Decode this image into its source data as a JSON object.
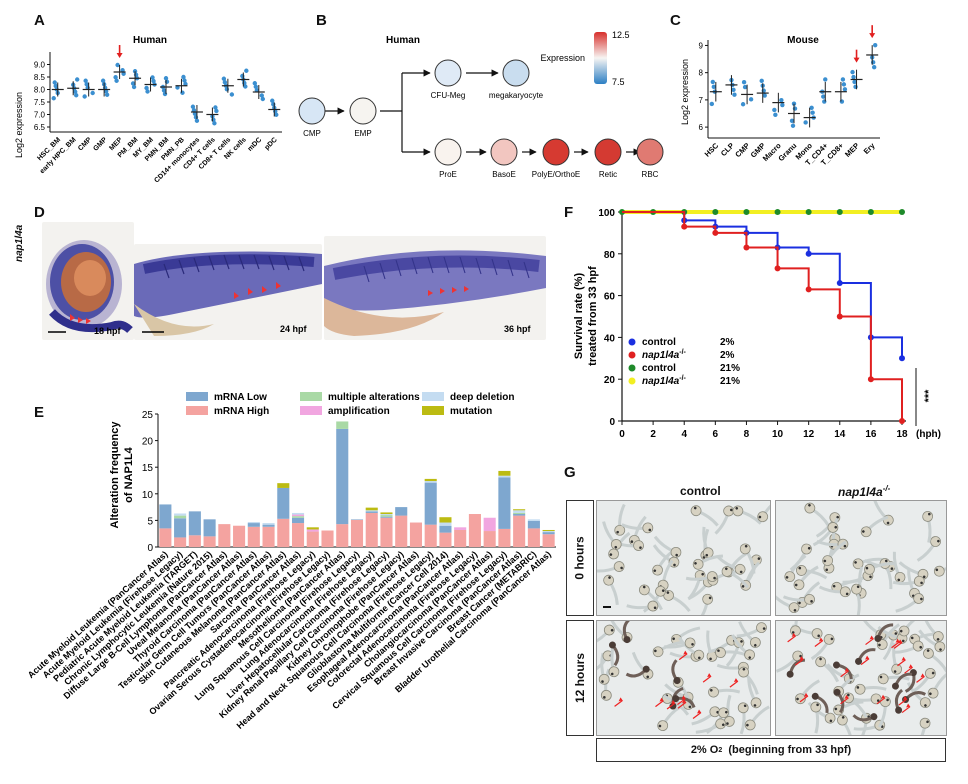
{
  "panels": {
    "A": "A",
    "B": "B",
    "C": "C",
    "D": "D",
    "E": "E",
    "F": "F",
    "G": "G"
  },
  "panelA": {
    "title": "Human",
    "ylabel": "Log2 expression",
    "chart_data": {
      "type": "scatter",
      "title": "Human",
      "ylabel": "Log2 expression",
      "ylim": [
        6.3,
        9.5
      ],
      "yticks": [
        "6.5",
        "7.0",
        "7.5",
        "8.0",
        "8.5",
        "9.0"
      ],
      "categories": [
        "HSC_BM",
        "early HPC_BM",
        "CMP",
        "GMP",
        "MEP",
        "PM_BM",
        "MY_BM",
        "PMN_BM",
        "PMN_PB",
        "CD14+ monocytes",
        "CD4+ T cells",
        "CD8+ T cells",
        "NK cells",
        "mDC",
        "pDC"
      ],
      "means": [
        8.0,
        8.05,
        8.0,
        8.0,
        8.7,
        8.45,
        8.2,
        8.1,
        8.15,
        7.1,
        7.0,
        8.15,
        8.4,
        7.9,
        7.2
      ],
      "highlight": "MEP"
    }
  },
  "panelB": {
    "title": "Human",
    "legend_title": "Expression",
    "legend_max": "12.5",
    "legend_min": "7.5",
    "nodes": [
      {
        "id": "CMP",
        "label": "CMP",
        "color": "#d7e6f5"
      },
      {
        "id": "EMP",
        "label": "EMP",
        "color": "#f6f4f0"
      },
      {
        "id": "CFU",
        "label": "CFU-Meg",
        "color": "#dfeaf6"
      },
      {
        "id": "MK",
        "label": "megakaryocyte",
        "color": "#c9ddef"
      },
      {
        "id": "ProE",
        "label": "ProE",
        "color": "#f9f3ee"
      },
      {
        "id": "BasoE",
        "label": "BasoE",
        "color": "#f2c6c0"
      },
      {
        "id": "Poly",
        "label": "PolyE/OrthoE",
        "color": "#d63a31"
      },
      {
        "id": "Retic",
        "label": "Retic",
        "color": "#d43a32"
      },
      {
        "id": "RBC",
        "label": "RBC",
        "color": "#e07a72"
      }
    ]
  },
  "panelC": {
    "title": "Mouse",
    "ylabel": "Log2 expression",
    "chart_data": {
      "type": "scatter",
      "title": "Mouse",
      "ylabel": "Log2 expression",
      "ylim": [
        5.6,
        9.2
      ],
      "yticks": [
        "6",
        "7",
        "8",
        "9"
      ],
      "categories": [
        "HSC",
        "CLP",
        "CMP",
        "GMP",
        "Macro",
        "Granu",
        "Mono",
        "T_CD4+",
        "T_CD8+",
        "MEP",
        "Ery"
      ],
      "means": [
        7.3,
        7.55,
        7.2,
        7.25,
        6.9,
        6.5,
        6.35,
        7.3,
        7.3,
        7.75,
        8.65
      ],
      "highlight": [
        "MEP",
        "Ery"
      ]
    }
  },
  "panelD": {
    "gene": "nap1l4a",
    "stages": [
      "18 hpf",
      "24 hpf",
      "36 hpf"
    ]
  },
  "panelE": {
    "ylabel_line1": "Alteration frequency",
    "ylabel_line2": "of NAP1L4",
    "legend": [
      {
        "label": "mRNA Low",
        "color": "#7ea7cf"
      },
      {
        "label": "mRNA High",
        "color": "#f4a3a0"
      },
      {
        "label": "multiple alterations",
        "color": "#a9d9a5"
      },
      {
        "label": "amplification",
        "color": "#f1a6e0"
      },
      {
        "label": "deep deletion",
        "color": "#c4dcf1"
      },
      {
        "label": "mutation",
        "color": "#bcbb12"
      }
    ],
    "chart_data": {
      "type": "bar",
      "stacked": true,
      "ylim": [
        0,
        25
      ],
      "yticks": [
        "0",
        "5",
        "10",
        "15",
        "20",
        "25"
      ],
      "categories": [
        "Acute Myeloid Leukemia (PanCancer Atlas)",
        "Acute Myeloid Leukemia (Firehose Legacy)",
        "Pediatric Acute Myeloid Leukemia (TARGET)",
        "Chronic Lymphocytic Leukemia (Nature 2015)",
        "Diffuse Large B-Cell Lymphoma (PanCancer Atlas)",
        "Uveal Melanoma (PanCancer Atlas)",
        "Thyroid Carcinoma (PanCancer Atlas)",
        "Testicular Germ Cell Tumors (PanCancer Atlas)",
        "Skin Cutaneous Melanoma (PanCancer Atlas)",
        "Sarcoma (PanCancer Atlas)",
        "Pancreatic Adenocarcinoma (Firehose Legacy)",
        "Ovarian Serous Cystadenocarcinoma (Firehose Legacy)",
        "Mesothelioma (PanCancer Atlas)",
        "Lung Squamous Cell Carcinoma (Firehose Legacy)",
        "Lung Adenocarcinoma (Firehose Legacy)",
        "Liver Hepatocellular Carcinoma (Firehose Legacy)",
        "Kidney Renal Papillary Cell Carcinoma (Firehose Legacy)",
        "Kidney Chromophobe (PanCancer Atlas)",
        "Head and Neck Squamous Cell Carcinoma (Firehose Legacy)",
        "Glioblastoma Multiforme (Cancer Cell 2014)",
        "Esophageal Adenocarcinoma (PanCancer Atlas)",
        "Colorectal Adenocarcinoma (Firehose Legacy)",
        "Cholangiocarcinoma (PanCancer Atlas)",
        "Cervical Squamous Cell Carcinoma (Firehose Legacy)",
        "Breast Invasive Carcinoma (PanCancer Atlas)",
        "Breast Cancer (METABRIC)",
        "Bladder Urothelial Carcinoma (PanCancer Atlas)"
      ],
      "series": [
        {
          "name": "mRNA High",
          "values": [
            3.5,
            1.8,
            2.2,
            2.0,
            4.3,
            4.0,
            3.8,
            3.8,
            5.3,
            4.5,
            2.9,
            3.1,
            4.3,
            5.1,
            6.4,
            5.5,
            5.9,
            4.6,
            4.2,
            2.7,
            3.2,
            6.2,
            3.0,
            3.4,
            5.9,
            3.5,
            2.4
          ]
        },
        {
          "name": "mRNA Low",
          "values": [
            4.5,
            3.6,
            4.5,
            3.2,
            0,
            0,
            0.7,
            0.4,
            5.8,
            1.0,
            0,
            0,
            17.9,
            0.1,
            0.3,
            0.2,
            1.6,
            0,
            7.9,
            1.3,
            0,
            0,
            0,
            9.7,
            0.3,
            1.4,
            0.4
          ]
        },
        {
          "name": "multiple alterations",
          "values": [
            0,
            0.5,
            0,
            0,
            0,
            0,
            0,
            0,
            0,
            0.3,
            0,
            0,
            1.4,
            0,
            0,
            0.3,
            0,
            0,
            0,
            0,
            0,
            0,
            0,
            0,
            0.2,
            0,
            0
          ]
        },
        {
          "name": "amplification",
          "values": [
            0,
            0,
            0,
            0,
            0,
            0,
            0,
            0,
            0,
            0.3,
            0.4,
            0,
            0,
            0,
            0,
            0,
            0,
            0,
            0,
            0,
            0.5,
            0,
            2.5,
            0,
            0,
            0,
            0
          ]
        },
        {
          "name": "deep deletion",
          "values": [
            0,
            0.4,
            0,
            0,
            0,
            0,
            0.2,
            0.3,
            0,
            0.3,
            0,
            0,
            0,
            0,
            0.2,
            0.2,
            0,
            0,
            0.3,
            0.6,
            0,
            0,
            0,
            0.3,
            0.5,
            0.3,
            0.2
          ]
        },
        {
          "name": "mutation",
          "values": [
            0,
            0,
            0,
            0,
            0,
            0,
            0,
            0,
            0.9,
            0,
            0.4,
            0,
            0,
            0,
            0.5,
            0.3,
            0,
            0,
            0.4,
            1.0,
            0,
            0,
            0,
            0.9,
            0.2,
            0,
            0.2
          ]
        }
      ]
    }
  },
  "panelF": {
    "ylabel_line1": "Survival rate (%)",
    "ylabel_line2": "treated from 33 hpf",
    "xunit": "(hph)",
    "signif": "***",
    "legend": [
      {
        "label": "control",
        "suffix": "2%",
        "color": "#1a2fe0",
        "italic": false
      },
      {
        "label": "nap1l4a",
        "sup": "-/-",
        "suffix": "2%",
        "color": "#e02020",
        "italic": true
      },
      {
        "label": "control",
        "suffix": "21%",
        "color": "#1e8a2a",
        "italic": false
      },
      {
        "label": "nap1l4a",
        "sup": "-/-",
        "suffix": "21%",
        "color": "#f2ef22",
        "italic": true
      }
    ],
    "chart_data": {
      "type": "line",
      "step": true,
      "xlim": [
        0,
        18
      ],
      "ylim": [
        0,
        100
      ],
      "xticks": [
        "0",
        "2",
        "4",
        "6",
        "8",
        "10",
        "12",
        "14",
        "16",
        "18"
      ],
      "yticks": [
        "0",
        "20",
        "40",
        "60",
        "80",
        "100"
      ],
      "series": [
        {
          "name": "control 2%",
          "x": [
            0,
            4,
            6,
            8,
            10,
            12,
            14,
            16,
            18
          ],
          "y": [
            100,
            96,
            93,
            90,
            83,
            80,
            66,
            40,
            30
          ]
        },
        {
          "name": "nap1l4a-/- 2%",
          "x": [
            0,
            4,
            6,
            8,
            10,
            12,
            14,
            16,
            18
          ],
          "y": [
            100,
            93,
            90,
            83,
            73,
            63,
            50,
            20,
            0
          ]
        },
        {
          "name": "control 21%",
          "x": [
            0,
            2,
            4,
            6,
            8,
            10,
            12,
            14,
            16,
            18
          ],
          "y": [
            100,
            100,
            100,
            100,
            100,
            100,
            100,
            100,
            100,
            100
          ]
        },
        {
          "name": "nap1l4a-/- 21%",
          "x": [
            0,
            18
          ],
          "y": [
            100,
            100
          ]
        }
      ]
    }
  },
  "panelG": {
    "col_control": "control",
    "col_mutant": "nap1l4a",
    "col_mutant_sup": "-/-",
    "row_0": "0 hours",
    "row_12": "12 hours",
    "caption": "2% O",
    "caption_sub": "2",
    "caption_rest": "  (beginning from 33 hpf)"
  }
}
